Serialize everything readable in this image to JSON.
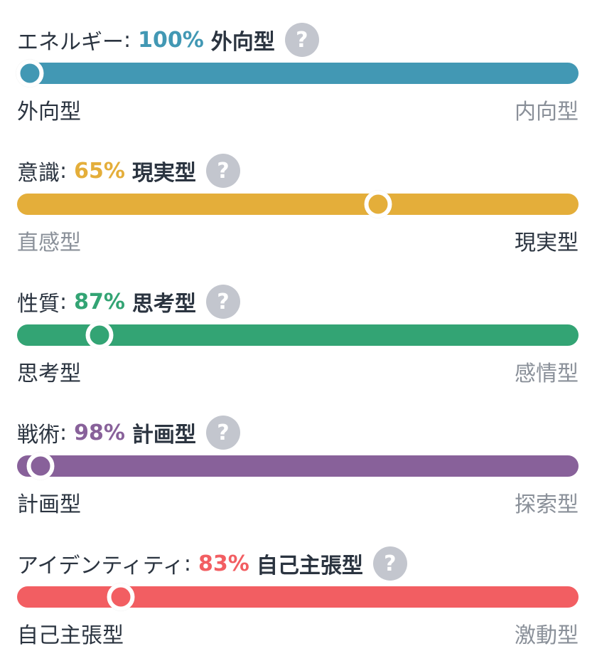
{
  "traits": [
    {
      "name": "エネルギー",
      "colon": ":",
      "percent": "100%",
      "percent_value": 100,
      "result": "外向型",
      "help": "?",
      "color": "#4298b4",
      "left_label": "外向型",
      "right_label": "内向型",
      "dominant_side": "left"
    },
    {
      "name": "意識",
      "colon": ":",
      "percent": "65%",
      "percent_value": 65,
      "result": "現実型",
      "help": "?",
      "color": "#e4ae3a",
      "left_label": "直感型",
      "right_label": "現実型",
      "dominant_side": "right"
    },
    {
      "name": "性質",
      "colon": ":",
      "percent": "87%",
      "percent_value": 87,
      "result": "思考型",
      "help": "?",
      "color": "#33a474",
      "left_label": "思考型",
      "right_label": "感情型",
      "dominant_side": "left"
    },
    {
      "name": "戦術",
      "colon": ":",
      "percent": "98%",
      "percent_value": 98,
      "result": "計画型",
      "help": "?",
      "color": "#88619a",
      "left_label": "計画型",
      "right_label": "探索型",
      "dominant_side": "left"
    },
    {
      "name": "アイデンティティ",
      "colon": ":",
      "percent": "83%",
      "percent_value": 83,
      "result": "自己主張型",
      "help": "?",
      "color": "#f25e62",
      "left_label": "自己主張型",
      "right_label": "激動型",
      "dominant_side": "left"
    }
  ]
}
